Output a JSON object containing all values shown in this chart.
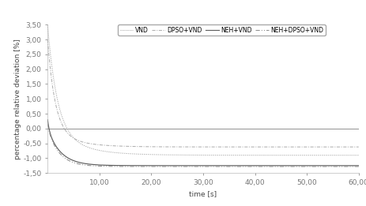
{
  "title": "",
  "xlabel": "time [s]",
  "ylabel": "percentage relative deviation [%]",
  "xlim": [
    0,
    60
  ],
  "ylim": [
    -1.5,
    3.5
  ],
  "yticks": [
    -1.5,
    -1.0,
    -0.5,
    0.0,
    0.5,
    1.0,
    1.5,
    2.0,
    2.5,
    3.0,
    3.5
  ],
  "xticks": [
    10.0,
    20.0,
    30.0,
    40.0,
    50.0,
    60.0
  ],
  "legend_labels": [
    "VND",
    "DPSO+VND",
    "NEH+VND",
    "NEH+DPSO+VND"
  ],
  "line_colors": [
    "#b0b0b0",
    "#b0b0b0",
    "#606060",
    "#909090"
  ],
  "background_color": "#ffffff",
  "zero_line_color": "#808080",
  "font_size": 6.5,
  "legend_font_size": 5.5,
  "curve_vnd": [
    3.5,
    0.55,
    0.9,
    0.18
  ],
  "curve_dpso_vnd": [
    3.0,
    0.7,
    0.62,
    0.22
  ],
  "curve_neh_vnd": [
    0.3,
    3.0,
    1.25,
    0.4
  ],
  "curve_neh_dpso_vnd": [
    0.2,
    3.5,
    1.28,
    0.45
  ]
}
